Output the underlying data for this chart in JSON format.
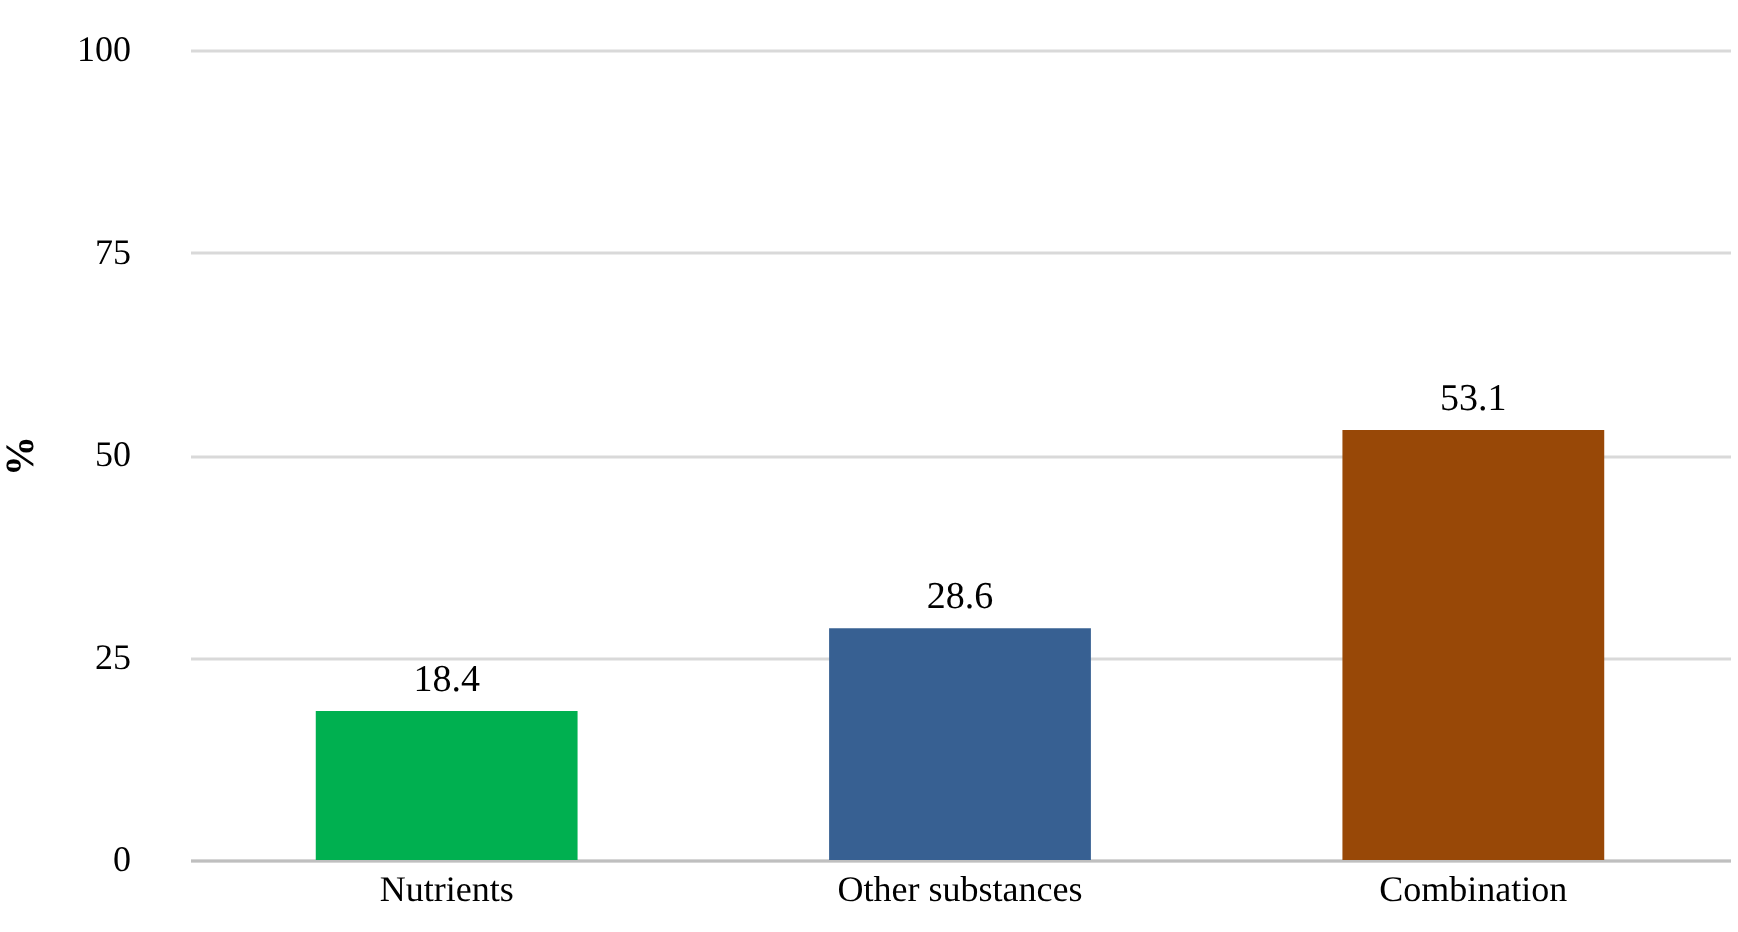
{
  "chart_data": {
    "type": "bar",
    "ylabel": "%",
    "categories": [
      "Nutrients",
      "Other substances",
      "Combination"
    ],
    "values": [
      18.4,
      28.6,
      53.1
    ],
    "colors": [
      "#00b050",
      "#376092",
      "#984807"
    ],
    "ylim": [
      0,
      100
    ],
    "yticks": [
      0,
      25,
      50,
      75,
      100
    ],
    "grid": "y",
    "data_labels": true
  }
}
